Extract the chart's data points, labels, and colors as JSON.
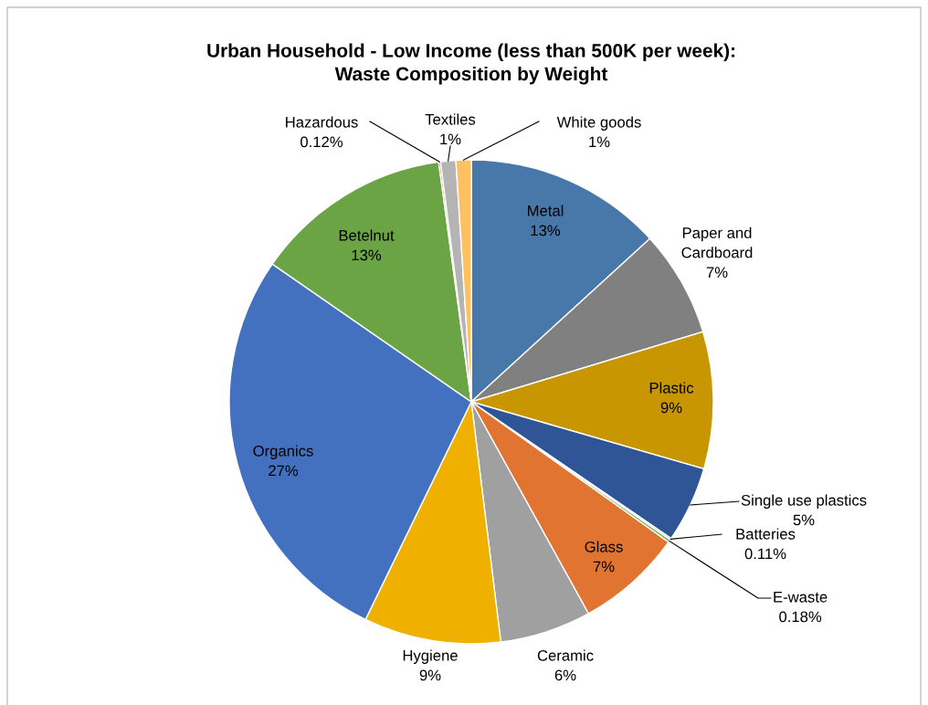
{
  "chart_data": {
    "type": "pie",
    "title": "Urban Household - Low Income (less than 500K per week):\nWaste Composition by Weight",
    "categories": [
      "Metal",
      "Paper and\nCardboard",
      "Plastic",
      "Single use plastics",
      "Batteries",
      "E-waste",
      "Glass",
      "Ceramic",
      "Hygiene",
      "Organics",
      "Betelnut",
      "Hazardous",
      "Textiles",
      "White goods"
    ],
    "values": [
      13,
      7,
      9,
      5,
      0.11,
      0.18,
      7,
      6,
      9,
      27,
      13,
      0.12,
      1,
      1
    ],
    "value_labels": [
      "13%",
      "7%",
      "9%",
      "5%",
      "0.11%",
      "0.18%",
      "7%",
      "6%",
      "9%",
      "27%",
      "13%",
      "0.12%",
      "1%",
      "1%"
    ],
    "colors": [
      "#4878aa",
      "#808080",
      "#c89600",
      "#2f5597",
      "#6fa8dc",
      "#70ad47",
      "#e07430",
      "#a0a0a0",
      "#f0b000",
      "#4470c0",
      "#6aa444",
      "#e07430",
      "#b4b4b4",
      "#ffc060"
    ],
    "legend": false
  }
}
